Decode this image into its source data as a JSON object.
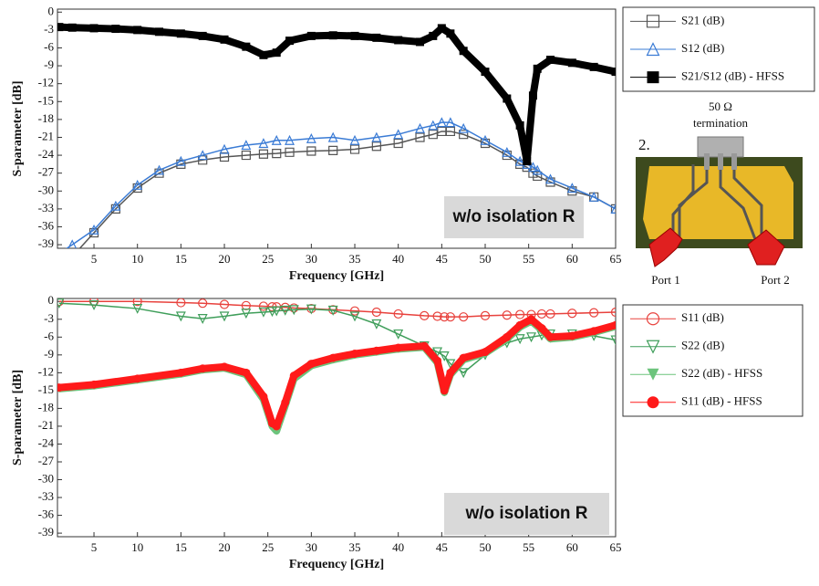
{
  "chart_data": [
    {
      "type": "line",
      "x": [
        1,
        2.5,
        5,
        7.5,
        10,
        12.5,
        15,
        17.5,
        20,
        22.5,
        24.5,
        26,
        27.5,
        30,
        32.5,
        35,
        37.5,
        40,
        42.5,
        44,
        45,
        46,
        47.5,
        50,
        52.5,
        54,
        54.8,
        55.5,
        56,
        57.5,
        60,
        62.5,
        65
      ],
      "series": [
        {
          "name": "S21 (dB)",
          "color": "#555555",
          "marker": "square",
          "width": 1.5,
          "values": [
            -44,
            -41,
            -37,
            -33,
            -29.5,
            -27,
            -25.5,
            -24.8,
            -24.3,
            -24,
            -23.8,
            -23.7,
            -23.5,
            -23.3,
            -23.2,
            -23,
            -22.5,
            -22,
            -21,
            -20.5,
            -20,
            -20,
            -20.5,
            -22,
            -24,
            -25.5,
            -26,
            -27,
            -27.5,
            -28.5,
            -30,
            -31,
            -33
          ]
        },
        {
          "name": "S12 (dB)",
          "color": "#3a7bd5",
          "marker": "triangle",
          "width": 1.5,
          "values": [
            -40.5,
            -39,
            -36.5,
            -32.5,
            -29,
            -26.5,
            -25,
            -24,
            -23,
            -22.3,
            -22,
            -21.5,
            -21.5,
            -21.2,
            -21,
            -21.5,
            -21,
            -20.5,
            -19.5,
            -19,
            -18.5,
            -18.5,
            -19.5,
            -21.5,
            -23.5,
            -25,
            -25.5,
            -26,
            -26.5,
            -28,
            -29.5,
            -31,
            -33
          ]
        },
        {
          "name": "S21/S12 (dB) - HFSS",
          "color": "#000000",
          "marker": "filled-square",
          "width": 8,
          "values": [
            -2.5,
            -2.6,
            -2.7,
            -2.8,
            -3.0,
            -3.3,
            -3.6,
            -4.0,
            -4.6,
            -5.8,
            -7.2,
            -6.8,
            -4.8,
            -4.0,
            -3.9,
            -4.0,
            -4.3,
            -4.7,
            -5.0,
            -4.0,
            -2.7,
            -3.6,
            -6.5,
            -10,
            -14.5,
            -19,
            -25,
            -14,
            -9.5,
            -8,
            -8.5,
            -9.2,
            -10
          ]
        }
      ],
      "xlim": [
        0.8,
        65
      ],
      "xticks": [
        5,
        10,
        15,
        20,
        25,
        30,
        35,
        40,
        45,
        50,
        55,
        60,
        65
      ],
      "ylim": [
        -39.6,
        0.5
      ],
      "yticks": [
        0,
        -3,
        -6,
        -9,
        -12,
        -15,
        -18,
        -21,
        -24,
        -27,
        -30,
        -33,
        -36,
        -39
      ],
      "x_label": "Frequency [GHz]",
      "y_label": "S-parameter [dB]",
      "annotation": "w/o isolation R",
      "legend": "outside-right"
    },
    {
      "type": "line",
      "x": [
        1,
        5,
        10,
        15,
        17.5,
        20,
        22.5,
        24.5,
        25.5,
        26,
        27,
        28,
        30,
        32.5,
        35,
        37.5,
        40,
        43,
        44.5,
        45.3,
        46,
        47.5,
        50,
        52.5,
        54,
        55.3,
        56.5,
        57.5,
        60,
        62.5,
        65
      ],
      "series": [
        {
          "name": "S11 (dB)",
          "color": "#e8423d",
          "marker": "circle",
          "width": 1.5,
          "values": [
            0,
            0,
            0,
            -0.2,
            -0.3,
            -0.5,
            -0.7,
            -0.8,
            -0.9,
            -0.9,
            -1,
            -1.1,
            -1.2,
            -1.4,
            -1.6,
            -1.8,
            -2.1,
            -2.4,
            -2.5,
            -2.6,
            -2.6,
            -2.6,
            -2.4,
            -2.3,
            -2.2,
            -2.2,
            -2.1,
            -2.1,
            -2,
            -1.9,
            -1.8
          ]
        },
        {
          "name": "S22 (dB)",
          "color": "#3f9e5a",
          "marker": "triangle-down",
          "width": 1.5,
          "values": [
            -0.3,
            -0.6,
            -1.2,
            -2.5,
            -2.9,
            -2.5,
            -2,
            -1.8,
            -1.7,
            -1.6,
            -1.5,
            -1.4,
            -1.3,
            -1.5,
            -2.5,
            -3.8,
            -5.5,
            -7.5,
            -8.5,
            -9.2,
            -10.5,
            -12,
            -9,
            -7,
            -6.3,
            -6,
            -5.7,
            -5.5,
            -5.5,
            -5.8,
            -6.5
          ]
        },
        {
          "name": "S22 (dB) - HFSS",
          "color": "#6cc47c",
          "marker": "filled-triangle-down",
          "width": 8,
          "values": [
            -14.7,
            -14.2,
            -13.2,
            -12.2,
            -11.5,
            -11.2,
            -12.3,
            -16.5,
            -21,
            -21.8,
            -17.5,
            -13,
            -10.8,
            -9.8,
            -9,
            -8.5,
            -8,
            -7.7,
            -10.3,
            -15.3,
            -12.3,
            -9.8,
            -8.7,
            -6.3,
            -4.3,
            -3.3,
            -4.8,
            -6.3,
            -6,
            -5.2,
            -4.2
          ]
        },
        {
          "name": "S11 (dB) - HFSS",
          "color": "#ff1a1a",
          "marker": "filled-circle",
          "width": 8,
          "values": [
            -14.5,
            -14,
            -13,
            -12,
            -11.3,
            -11,
            -12,
            -16,
            -20.5,
            -21,
            -17,
            -12.5,
            -10.5,
            -9.5,
            -8.8,
            -8.3,
            -7.8,
            -7.5,
            -10,
            -15,
            -12,
            -9.5,
            -8.5,
            -6,
            -4,
            -3,
            -4.5,
            -6,
            -5.8,
            -5,
            -4
          ]
        }
      ],
      "xlim": [
        0.8,
        65
      ],
      "xticks": [
        5,
        10,
        15,
        20,
        25,
        30,
        35,
        40,
        45,
        50,
        55,
        60,
        65
      ],
      "ylim": [
        -39.6,
        0.5
      ],
      "yticks": [
        0,
        -3,
        -6,
        -9,
        -12,
        -15,
        -18,
        -21,
        -24,
        -27,
        -30,
        -33,
        -36,
        -39
      ],
      "x_label": "Frequency [GHz]",
      "y_label": "S-parameter [dB]",
      "annotation": "w/o isolation R",
      "legend": "outside-right"
    }
  ],
  "inset": {
    "number": "2.",
    "termination": [
      "50 Ω",
      "termination"
    ],
    "ports": [
      "Port 1",
      "Port 2"
    ]
  }
}
